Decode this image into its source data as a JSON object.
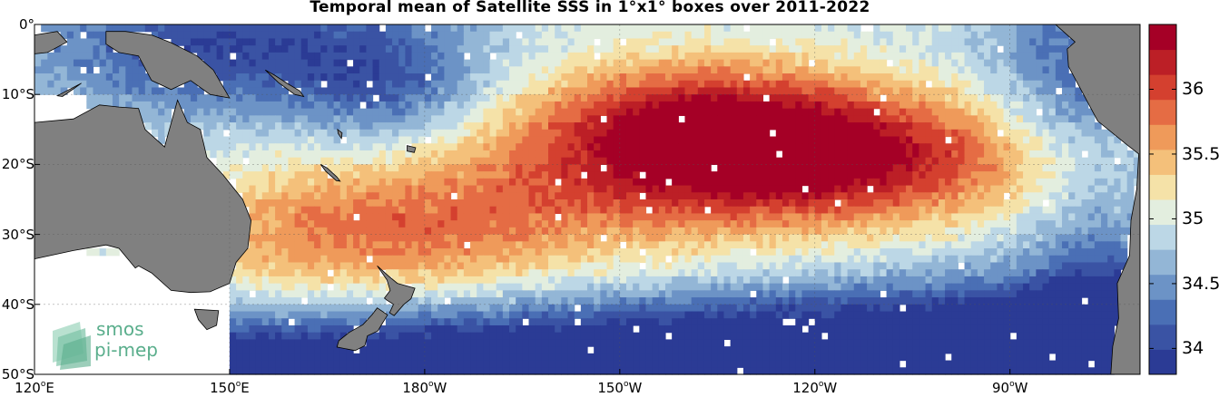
{
  "title": "Temporal mean of Satellite SSS in 1°x1° boxes over 2011-2022",
  "map": {
    "lon_range": [
      120,
      290
    ],
    "lat_range": [
      -50,
      0
    ],
    "lat_labels": [
      {
        "lat": 0,
        "text": "0°"
      },
      {
        "lat": -10,
        "text": "10°S"
      },
      {
        "lat": -20,
        "text": "20°S"
      },
      {
        "lat": -30,
        "text": "30°S"
      },
      {
        "lat": -40,
        "text": "40°S"
      },
      {
        "lat": -50,
        "text": "50°S"
      }
    ],
    "lon_labels": [
      {
        "lon": 120,
        "num": "120",
        "hemi": "E"
      },
      {
        "lon": 150,
        "num": "150",
        "hemi": "E"
      },
      {
        "lon": 180,
        "num": "180",
        "hemi": "W"
      },
      {
        "lon": 210,
        "num": "150",
        "hemi": "W"
      },
      {
        "lon": 240,
        "num": "120",
        "hemi": "W"
      },
      {
        "lon": 270,
        "num": "90",
        "hemi": "W"
      }
    ],
    "land_color": "#808080",
    "grid": true
  },
  "colorbar": {
    "range": [
      33.8,
      36.5
    ],
    "ticks": [
      34,
      34.5,
      35,
      35.5,
      36
    ],
    "tick_labels": [
      "34",
      "34.5",
      "35",
      "35.5",
      "36"
    ],
    "colors": [
      "#2b3b95",
      "#3a53a4",
      "#4a6fb5",
      "#6c93c6",
      "#93b6d6",
      "#bcd7e6",
      "#e3eedf",
      "#f5e2a8",
      "#f4c07a",
      "#ef9a5a",
      "#e56c44",
      "#d4402f",
      "#bc1f26",
      "#a50026"
    ]
  },
  "logo": {
    "line1": "smos",
    "line2": "pi-mep"
  }
}
